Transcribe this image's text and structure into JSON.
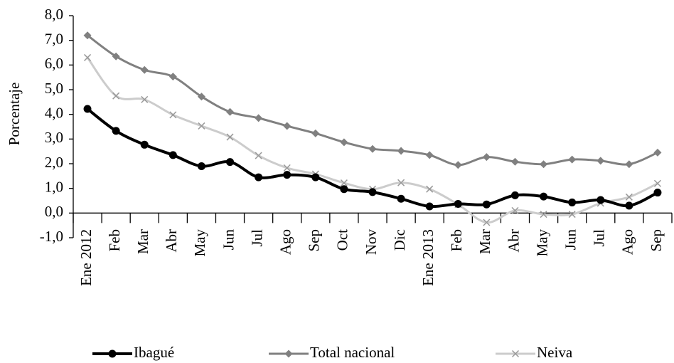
{
  "chart_data": {
    "type": "line",
    "y_label": "Porcentaje",
    "categories": [
      "Ene 2012",
      "Feb",
      "Mar",
      "Abr",
      "May",
      "Jun",
      "Jul",
      "Ago",
      "Sep",
      "Oct",
      "Nov",
      "Dic",
      "Ene 2013",
      "Feb",
      "Mar",
      "Abr",
      "May",
      "Jun",
      "Jul",
      "Ago",
      "Sep"
    ],
    "series": [
      {
        "name": "Ibagué",
        "color": "#000000",
        "marker": "circle",
        "values": [
          4.22,
          3.33,
          2.77,
          2.35,
          1.9,
          2.07,
          1.45,
          1.55,
          1.45,
          0.97,
          0.85,
          0.58,
          0.27,
          0.37,
          0.35,
          0.72,
          0.67,
          0.43,
          0.53,
          0.3,
          0.83
        ]
      },
      {
        "name": "Total nacional",
        "color": "#808080",
        "marker": "diamond",
        "values": [
          7.2,
          6.35,
          5.8,
          5.53,
          4.72,
          4.1,
          3.85,
          3.53,
          3.23,
          2.87,
          2.6,
          2.52,
          2.35,
          1.95,
          2.27,
          2.08,
          1.98,
          2.17,
          2.12,
          1.98,
          2.45
        ]
      },
      {
        "name": "Neiva",
        "color": "#cccccc",
        "marker": "x",
        "values": [
          6.3,
          4.75,
          4.6,
          3.98,
          3.53,
          3.08,
          2.33,
          1.83,
          1.58,
          1.22,
          0.97,
          1.23,
          0.97,
          0.35,
          -0.38,
          0.1,
          -0.05,
          -0.05,
          0.4,
          0.65,
          1.2
        ]
      }
    ],
    "ylim": [
      -1,
      8
    ],
    "yticks": [
      {
        "value": -1,
        "label": "-1,0"
      },
      {
        "value": 0,
        "label": "0,0"
      },
      {
        "value": 1,
        "label": "1,0"
      },
      {
        "value": 2,
        "label": "2,0"
      },
      {
        "value": 3,
        "label": "3,0"
      },
      {
        "value": 4,
        "label": "4,0"
      },
      {
        "value": 5,
        "label": "5,0"
      },
      {
        "value": 6,
        "label": "6,0"
      },
      {
        "value": 7,
        "label": "7,0"
      },
      {
        "value": 8,
        "label": "8,0"
      }
    ],
    "legend": "bottom",
    "smooth": true
  }
}
